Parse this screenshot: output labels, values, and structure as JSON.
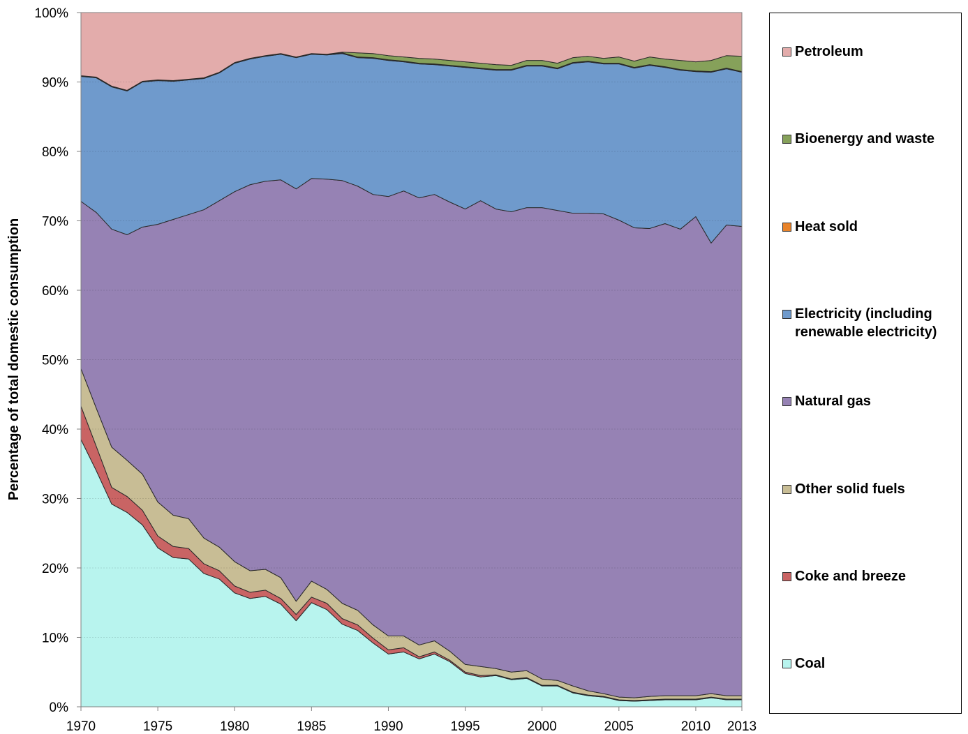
{
  "chart_data": {
    "type": "stacked_area",
    "y_label": "Percentage of total domestic consumption",
    "x": [
      1970,
      1971,
      1972,
      1973,
      1974,
      1975,
      1976,
      1977,
      1978,
      1979,
      1980,
      1981,
      1982,
      1983,
      1984,
      1985,
      1986,
      1987,
      1988,
      1989,
      1990,
      1991,
      1992,
      1993,
      1994,
      1995,
      1996,
      1997,
      1998,
      1999,
      2000,
      2001,
      2002,
      2003,
      2004,
      2005,
      2006,
      2007,
      2008,
      2009,
      2010,
      2011,
      2012,
      2013
    ],
    "xlim": [
      1970,
      2013
    ],
    "xticks": [
      1970,
      1975,
      1980,
      1985,
      1990,
      1995,
      2000,
      2005,
      2010,
      2013
    ],
    "ylim": [
      0,
      100
    ],
    "yticks": [
      {
        "value": 0,
        "label": "0%"
      },
      {
        "value": 10,
        "label": "10%"
      },
      {
        "value": 20,
        "label": "20%"
      },
      {
        "value": 30,
        "label": "30%"
      },
      {
        "value": 40,
        "label": "40%"
      },
      {
        "value": 50,
        "label": "50%"
      },
      {
        "value": 60,
        "label": "60%"
      },
      {
        "value": 70,
        "label": "70%"
      },
      {
        "value": 80,
        "label": "80%"
      },
      {
        "value": 90,
        "label": "90%"
      },
      {
        "value": 100,
        "label": "100%"
      }
    ],
    "grid": true,
    "legend": "right",
    "series": [
      {
        "name": "Coal",
        "color": "#b8f4ee",
        "values": [
          38.5,
          34.0,
          29.2,
          28.0,
          26.2,
          22.9,
          21.5,
          21.3,
          19.2,
          18.4,
          16.4,
          15.6,
          15.9,
          14.8,
          12.4,
          15.0,
          14.0,
          11.9,
          11.0,
          9.2,
          7.6,
          7.9,
          6.9,
          7.6,
          6.5,
          4.8,
          4.3,
          4.5,
          3.9,
          4.1,
          3.0,
          3.0,
          2.0,
          1.6,
          1.4,
          0.9,
          0.8,
          0.9,
          1.0,
          1.0,
          1.0,
          1.3,
          1.0,
          1.0
        ]
      },
      {
        "name": "Coke and breeze",
        "color": "#c96464",
        "values": [
          4.8,
          3.5,
          2.4,
          2.3,
          2.1,
          1.7,
          1.6,
          1.5,
          1.4,
          1.2,
          1.0,
          0.9,
          0.9,
          0.8,
          0.9,
          0.8,
          0.9,
          0.8,
          0.8,
          0.7,
          0.6,
          0.6,
          0.3,
          0.3,
          0.2,
          0.2,
          0.2,
          0.1,
          0.1,
          0.1,
          0.1,
          0.1,
          0.1,
          0.1,
          0.1,
          0.1,
          0.1,
          0.1,
          0.1,
          0.1,
          0.1,
          0.1,
          0.1,
          0.1
        ]
      },
      {
        "name": "Other solid fuels",
        "color": "#c8bd95",
        "values": [
          5.4,
          5.5,
          5.8,
          5.2,
          5.2,
          4.9,
          4.5,
          4.3,
          3.7,
          3.4,
          3.5,
          3.1,
          3.0,
          3.0,
          1.9,
          2.3,
          2.0,
          2.2,
          2.1,
          1.9,
          2.0,
          1.7,
          1.7,
          1.6,
          1.3,
          1.1,
          1.3,
          0.9,
          1.0,
          1.0,
          0.9,
          0.7,
          0.9,
          0.6,
          0.4,
          0.4,
          0.4,
          0.5,
          0.5,
          0.5,
          0.5,
          0.5,
          0.5,
          0.5
        ]
      },
      {
        "name": "Natural gas",
        "color": "#9682b4",
        "values": [
          24.1,
          28.2,
          31.4,
          32.5,
          35.6,
          40.0,
          42.6,
          43.8,
          47.3,
          49.9,
          53.3,
          55.6,
          55.9,
          57.3,
          59.4,
          58.0,
          59.1,
          60.9,
          61.1,
          62.0,
          63.3,
          64.1,
          64.4,
          64.3,
          64.7,
          65.6,
          67.1,
          66.2,
          66.3,
          66.7,
          67.9,
          67.7,
          68.1,
          68.8,
          69.1,
          68.7,
          67.7,
          67.4,
          68.0,
          67.2,
          69.0,
          64.9,
          67.8,
          67.6
        ]
      },
      {
        "name": "Electricity (including renewable electricity)",
        "color": "#6f9acc",
        "values": [
          18.0,
          19.4,
          20.5,
          20.7,
          20.9,
          20.7,
          19.9,
          19.4,
          18.9,
          18.4,
          18.5,
          18.1,
          18.0,
          18.1,
          18.9,
          17.9,
          17.9,
          18.3,
          18.5,
          19.6,
          19.6,
          18.6,
          19.3,
          18.7,
          19.6,
          20.4,
          19.0,
          20.0,
          20.4,
          20.4,
          20.4,
          20.4,
          21.6,
          21.8,
          21.6,
          22.5,
          23.0,
          23.5,
          22.5,
          22.9,
          20.9,
          24.6,
          22.5,
          22.2
        ]
      },
      {
        "name": "Heat sold",
        "color": "#e8832a",
        "values": [
          0.1,
          0.1,
          0.1,
          0.1,
          0.1,
          0.1,
          0.1,
          0.1,
          0.1,
          0.1,
          0.1,
          0.1,
          0.1,
          0.1,
          0.1,
          0.1,
          0.1,
          0.1,
          0.1,
          0.1,
          0.1,
          0.1,
          0.1,
          0.1,
          0.1,
          0.1,
          0.1,
          0.1,
          0.1,
          0.1,
          0.1,
          0.1,
          0.1,
          0.1,
          0.1,
          0.1,
          0.1,
          0.1,
          0.1,
          0.1,
          0.1,
          0.1,
          0.1,
          0.1
        ]
      },
      {
        "name": "Bioenergy and waste",
        "color": "#86a15a",
        "values": [
          0,
          0,
          0,
          0,
          0,
          0,
          0,
          0,
          0,
          0,
          0,
          0,
          0,
          0,
          0,
          0,
          0,
          0.1,
          0.6,
          0.6,
          0.6,
          0.6,
          0.7,
          0.7,
          0.7,
          0.7,
          0.7,
          0.7,
          0.6,
          0.7,
          0.7,
          0.7,
          0.7,
          0.7,
          0.7,
          0.9,
          0.9,
          1.1,
          1.1,
          1.3,
          1.3,
          1.6,
          1.8,
          2.2
        ]
      },
      {
        "name": "Petroleum",
        "color": "#e3acab",
        "values": [
          9.1,
          9.3,
          10.6,
          11.2,
          9.9,
          9.7,
          9.8,
          9.6,
          9.4,
          8.6,
          7.2,
          6.6,
          6.2,
          5.9,
          6.4,
          5.9,
          6.0,
          5.7,
          5.8,
          5.9,
          6.2,
          6.4,
          6.6,
          6.7,
          6.9,
          7.1,
          7.3,
          7.5,
          7.6,
          6.9,
          6.9,
          7.3,
          6.5,
          6.3,
          6.6,
          6.4,
          7.0,
          6.4,
          6.7,
          6.9,
          7.1,
          6.9,
          6.2,
          6.3
        ]
      }
    ]
  }
}
